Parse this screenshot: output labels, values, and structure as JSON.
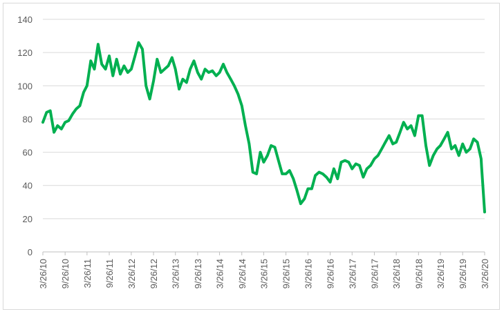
{
  "chart_data": {
    "type": "line",
    "title": "",
    "xlabel": "",
    "ylabel": "",
    "ylim": [
      0,
      140
    ],
    "y_ticks": [
      0,
      20,
      40,
      60,
      80,
      100,
      120,
      140
    ],
    "x_ticks": [
      "3/26/10",
      "9/26/10",
      "3/26/11",
      "9/26/11",
      "3/26/12",
      "9/26/12",
      "3/26/13",
      "9/26/13",
      "3/26/14",
      "9/26/14",
      "3/26/15",
      "9/26/15",
      "3/26/16",
      "9/26/16",
      "3/26/17",
      "9/26/17",
      "3/26/18",
      "9/26/18",
      "3/26/19",
      "9/26/19",
      "3/26/20"
    ],
    "grid": "horizontal",
    "legend": "none",
    "series": [
      {
        "color": "#00b050",
        "values": [
          [
            "3/26/10",
            78
          ],
          [
            "4/26/10",
            84
          ],
          [
            "5/26/10",
            85
          ],
          [
            "6/26/10",
            72
          ],
          [
            "7/26/10",
            76
          ],
          [
            "8/26/10",
            74
          ],
          [
            "9/26/10",
            78
          ],
          [
            "10/26/10",
            79
          ],
          [
            "11/26/10",
            83
          ],
          [
            "12/26/10",
            86
          ],
          [
            "1/26/11",
            88
          ],
          [
            "2/26/11",
            96
          ],
          [
            "3/26/11",
            100
          ],
          [
            "4/26/11",
            115
          ],
          [
            "5/26/11",
            110
          ],
          [
            "6/26/11",
            125
          ],
          [
            "7/26/11",
            113
          ],
          [
            "8/26/11",
            110
          ],
          [
            "9/26/11",
            118
          ],
          [
            "10/26/11",
            106
          ],
          [
            "11/26/11",
            116
          ],
          [
            "12/26/11",
            107
          ],
          [
            "1/26/12",
            112
          ],
          [
            "2/26/12",
            108
          ],
          [
            "3/26/12",
            110
          ],
          [
            "4/26/12",
            118
          ],
          [
            "5/26/12",
            126
          ],
          [
            "6/26/12",
            122
          ],
          [
            "7/26/12",
            100
          ],
          [
            "8/26/12",
            92
          ],
          [
            "9/26/12",
            103
          ],
          [
            "10/26/12",
            116
          ],
          [
            "11/26/12",
            108
          ],
          [
            "12/26/12",
            110
          ],
          [
            "1/26/13",
            112
          ],
          [
            "2/26/13",
            117
          ],
          [
            "3/26/13",
            110
          ],
          [
            "4/26/13",
            98
          ],
          [
            "5/26/13",
            104
          ],
          [
            "6/26/13",
            102
          ],
          [
            "7/26/13",
            110
          ],
          [
            "8/26/13",
            115
          ],
          [
            "9/26/13",
            108
          ],
          [
            "10/26/13",
            104
          ],
          [
            "11/26/13",
            110
          ],
          [
            "12/26/13",
            108
          ],
          [
            "1/26/14",
            109
          ],
          [
            "2/26/14",
            106
          ],
          [
            "3/26/14",
            108
          ],
          [
            "4/26/14",
            113
          ],
          [
            "5/26/14",
            108
          ],
          [
            "6/26/14",
            104
          ],
          [
            "7/26/14",
            100
          ],
          [
            "8/26/14",
            95
          ],
          [
            "9/26/14",
            88
          ],
          [
            "10/26/14",
            76
          ],
          [
            "11/26/14",
            65
          ],
          [
            "12/26/14",
            48
          ],
          [
            "1/26/15",
            47
          ],
          [
            "2/26/15",
            60
          ],
          [
            "3/26/15",
            54
          ],
          [
            "4/26/15",
            58
          ],
          [
            "5/26/15",
            64
          ],
          [
            "6/26/15",
            63
          ],
          [
            "7/26/15",
            55
          ],
          [
            "8/26/15",
            47
          ],
          [
            "9/26/15",
            47
          ],
          [
            "10/26/15",
            49
          ],
          [
            "11/26/15",
            44
          ],
          [
            "12/26/15",
            37
          ],
          [
            "1/26/16",
            29
          ],
          [
            "2/26/16",
            32
          ],
          [
            "3/26/16",
            38
          ],
          [
            "4/26/16",
            38
          ],
          [
            "5/26/16",
            46
          ],
          [
            "6/26/16",
            48
          ],
          [
            "7/26/16",
            47
          ],
          [
            "8/26/16",
            45
          ],
          [
            "9/26/16",
            42
          ],
          [
            "10/26/16",
            50
          ],
          [
            "11/26/16",
            44
          ],
          [
            "12/26/16",
            54
          ],
          [
            "1/26/17",
            55
          ],
          [
            "2/26/17",
            54
          ],
          [
            "3/26/17",
            50
          ],
          [
            "4/26/17",
            53
          ],
          [
            "5/26/17",
            52
          ],
          [
            "6/26/17",
            45
          ],
          [
            "7/26/17",
            50
          ],
          [
            "8/26/17",
            52
          ],
          [
            "9/26/17",
            56
          ],
          [
            "10/26/17",
            58
          ],
          [
            "11/26/17",
            62
          ],
          [
            "12/26/17",
            66
          ],
          [
            "1/26/18",
            70
          ],
          [
            "2/26/18",
            65
          ],
          [
            "3/26/18",
            66
          ],
          [
            "4/26/18",
            72
          ],
          [
            "5/26/18",
            78
          ],
          [
            "6/26/18",
            74
          ],
          [
            "7/26/18",
            76
          ],
          [
            "8/26/18",
            70
          ],
          [
            "9/26/18",
            82
          ],
          [
            "10/26/18",
            82
          ],
          [
            "11/26/18",
            64
          ],
          [
            "12/26/18",
            52
          ],
          [
            "1/26/19",
            58
          ],
          [
            "2/26/19",
            62
          ],
          [
            "3/26/19",
            64
          ],
          [
            "4/26/19",
            68
          ],
          [
            "5/26/19",
            72
          ],
          [
            "6/26/19",
            62
          ],
          [
            "7/26/19",
            64
          ],
          [
            "8/26/19",
            58
          ],
          [
            "9/26/19",
            65
          ],
          [
            "10/26/19",
            60
          ],
          [
            "11/26/19",
            62
          ],
          [
            "12/26/19",
            68
          ],
          [
            "1/26/20",
            66
          ],
          [
            "2/26/20",
            56
          ],
          [
            "3/1/20",
            51
          ],
          [
            "3/26/20",
            24
          ]
        ]
      }
    ]
  }
}
